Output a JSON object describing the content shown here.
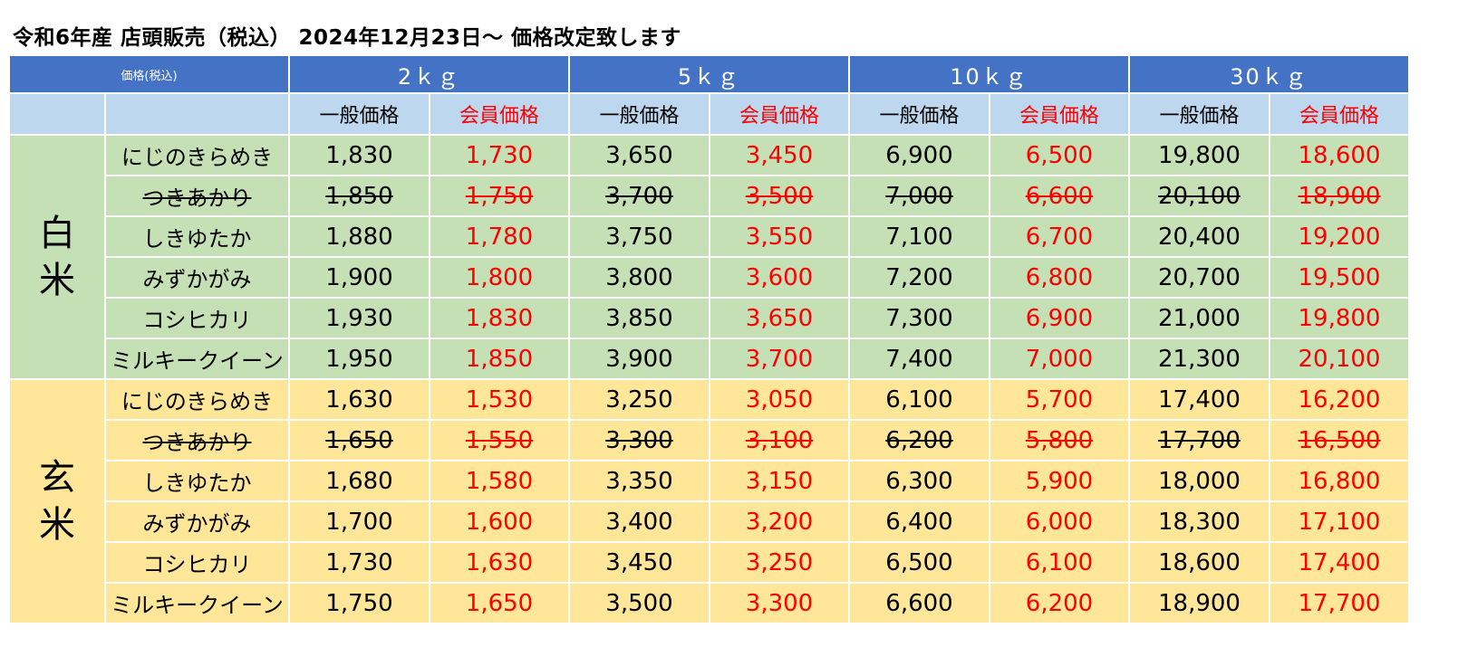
{
  "title": "令和6年産 店頭販売（税込） 2024年12月23日〜 価格改定致します",
  "header": {
    "corner": "価格(税込)",
    "sizes": [
      "2ｋｇ",
      "5ｋｇ",
      "10ｋｇ",
      "30ｋｇ"
    ],
    "general": "一般価格",
    "member": "会員価格"
  },
  "categories": [
    {
      "label": "白米",
      "color": "#c5e0b4",
      "rows": [
        {
          "variety": "にじのきらめき",
          "struck": false,
          "prices": [
            "1,830",
            "1,730",
            "3,650",
            "3,450",
            "6,900",
            "6,500",
            "19,800",
            "18,600"
          ]
        },
        {
          "variety": "つきあかり",
          "struck": true,
          "prices": [
            "1,850",
            "1,750",
            "3,700",
            "3,500",
            "7,000",
            "6,600",
            "20,100",
            "18,900"
          ]
        },
        {
          "variety": "しきゆたか",
          "struck": false,
          "prices": [
            "1,880",
            "1,780",
            "3,750",
            "3,550",
            "7,100",
            "6,700",
            "20,400",
            "19,200"
          ]
        },
        {
          "variety": "みずかがみ",
          "struck": false,
          "prices": [
            "1,900",
            "1,800",
            "3,800",
            "3,600",
            "7,200",
            "6,800",
            "20,700",
            "19,500"
          ]
        },
        {
          "variety": "コシヒカリ",
          "struck": false,
          "prices": [
            "1,930",
            "1,830",
            "3,850",
            "3,650",
            "7,300",
            "6,900",
            "21,000",
            "19,800"
          ]
        },
        {
          "variety": "ミルキークイーン",
          "struck": false,
          "prices": [
            "1,950",
            "1,850",
            "3,900",
            "3,700",
            "7,400",
            "7,000",
            "21,300",
            "20,100"
          ]
        }
      ]
    },
    {
      "label": "玄米",
      "color": "#ffe699",
      "rows": [
        {
          "variety": "にじのきらめき",
          "struck": false,
          "prices": [
            "1,630",
            "1,530",
            "3,250",
            "3,050",
            "6,100",
            "5,700",
            "17,400",
            "16,200"
          ]
        },
        {
          "variety": "つきあかり",
          "struck": true,
          "prices": [
            "1,650",
            "1,550",
            "3,300",
            "3,100",
            "6,200",
            "5,800",
            "17,700",
            "16,500"
          ]
        },
        {
          "variety": "しきゆたか",
          "struck": false,
          "prices": [
            "1,680",
            "1,580",
            "3,350",
            "3,150",
            "6,300",
            "5,900",
            "18,000",
            "16,800"
          ]
        },
        {
          "variety": "みずかがみ",
          "struck": false,
          "prices": [
            "1,700",
            "1,600",
            "3,400",
            "3,200",
            "6,400",
            "6,000",
            "18,300",
            "17,100"
          ]
        },
        {
          "variety": "コシヒカリ",
          "struck": false,
          "prices": [
            "1,730",
            "1,630",
            "3,450",
            "3,250",
            "6,500",
            "6,100",
            "18,600",
            "17,400"
          ]
        },
        {
          "variety": "ミルキークイーン",
          "struck": false,
          "prices": [
            "1,750",
            "1,650",
            "3,500",
            "3,300",
            "6,600",
            "6,200",
            "18,900",
            "17,700"
          ]
        }
      ]
    }
  ],
  "colors": {
    "header_blue": "#4472c4",
    "subheader_blue": "#bdd7ee",
    "member_red": "#ff0000"
  }
}
